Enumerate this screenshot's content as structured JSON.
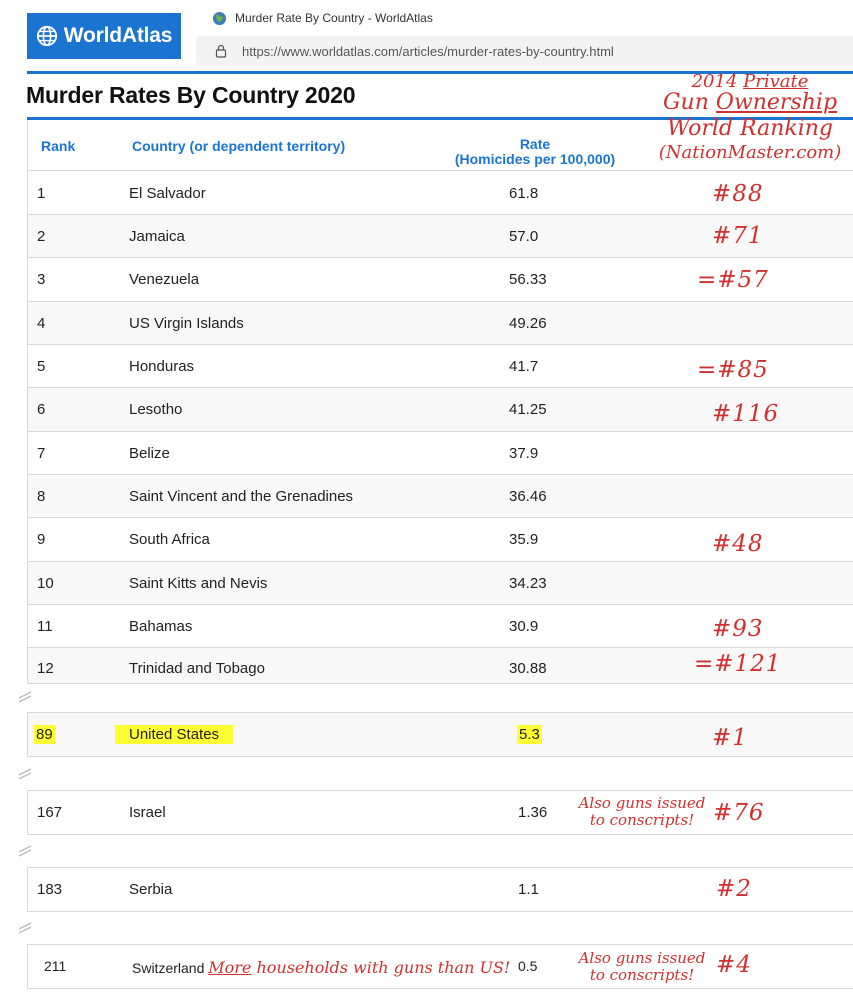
{
  "browser": {
    "brand": "WorldAtlas",
    "tab_title": "Murder Rate By Country - WorldAtlas",
    "url": "https://www.worldatlas.com/articles/murder-rates-by-country.html"
  },
  "page": {
    "title": "Murder Rates By Country 2020"
  },
  "table": {
    "headers": {
      "rank": "Rank",
      "country": "Country (or dependent territory)",
      "rate_line1": "Rate",
      "rate_line2": "(Homicides per 100,000)"
    },
    "rows": [
      {
        "rank": "1",
        "country": "El Salvador",
        "rate": "61.8",
        "gun_rank": "#88"
      },
      {
        "rank": "2",
        "country": "Jamaica",
        "rate": "57.0",
        "gun_rank": "#71"
      },
      {
        "rank": "3",
        "country": "Venezuela",
        "rate": "56.33",
        "gun_rank": "=#57"
      },
      {
        "rank": "4",
        "country": "US Virgin Islands",
        "rate": "49.26",
        "gun_rank": ""
      },
      {
        "rank": "5",
        "country": "Honduras",
        "rate": "41.7",
        "gun_rank": "=#85"
      },
      {
        "rank": "6",
        "country": "Lesotho",
        "rate": "41.25",
        "gun_rank": "#116"
      },
      {
        "rank": "7",
        "country": "Belize",
        "rate": "37.9",
        "gun_rank": ""
      },
      {
        "rank": "8",
        "country": "Saint Vincent and the Grenadines",
        "rate": "36.46",
        "gun_rank": ""
      },
      {
        "rank": "9",
        "country": "South Africa",
        "rate": "35.9",
        "gun_rank": "#48"
      },
      {
        "rank": "10",
        "country": "Saint Kitts and Nevis",
        "rate": "34.23",
        "gun_rank": ""
      },
      {
        "rank": "11",
        "country": "Bahamas",
        "rate": "30.9",
        "gun_rank": "#93"
      },
      {
        "rank": "12",
        "country": "Trinidad and Tobago",
        "rate": "30.88",
        "gun_rank": "=#121"
      }
    ],
    "excerpts": [
      {
        "rank": "89",
        "country": "United States",
        "rate": "5.3",
        "gun_rank": "#1"
      },
      {
        "rank": "167",
        "country": "Israel",
        "rate": "1.36",
        "gun_rank": "#76",
        "note_line1": "Also guns issued",
        "note_line2": "to conscripts!"
      },
      {
        "rank": "183",
        "country": "Serbia",
        "rate": "1.1",
        "gun_rank": "#2"
      },
      {
        "rank": "211",
        "country": "Switzerland",
        "rate": "0.5",
        "gun_rank": "#4",
        "note_line1": "Also guns issued",
        "note_line2": "to conscripts!",
        "inline_more": "More",
        "inline_rest": " households with guns than US!"
      }
    ]
  },
  "annotation_header": {
    "line1_a": "2014 ",
    "line1_b": "Private",
    "line2_a": "Gun ",
    "line2_b": "Ownership",
    "line3": "World Ranking",
    "line4": "(NationMaster.com)"
  },
  "colors": {
    "brand_blue": "#1b75d0",
    "highlight": "#ffff33",
    "annotation_red": "#d03030"
  }
}
